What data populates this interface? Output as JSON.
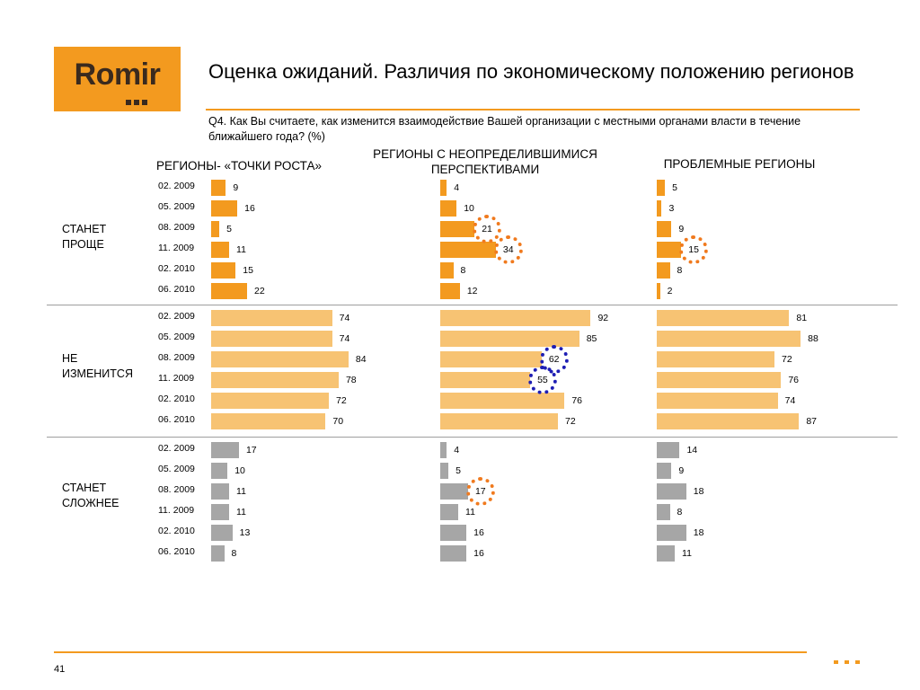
{
  "logo": {
    "text": "Romir"
  },
  "header": {
    "title": "Оценка ожиданий. Различия по экономическому положению регионов",
    "question": "Q4. Как Вы считаете, как изменится взаимодействие Вашей организации с местными органами власти в течение ближайшего года? (%)"
  },
  "chart_data": {
    "type": "bar",
    "orientation": "horizontal",
    "categories": [
      "02. 2009",
      "05. 2009",
      "08. 2009",
      "11. 2009",
      "02. 2010",
      "06. 2010"
    ],
    "columns": [
      "РЕГИОНЫ- «ТОЧКИ РОСТА»",
      "РЕГИОНЫ   С НЕОПРЕДЕЛИВШИМИСЯ ПЕРСПЕКТИВАМИ",
      "ПРОБЛЕМНЫЕ РЕГИОНЫ"
    ],
    "groups": [
      {
        "label": "СТАНЕТ ПРОЩЕ",
        "color": "#F39A1F",
        "series": [
          {
            "name": "РЕГИОНЫ- «ТОЧКИ РОСТА»",
            "values": [
              9,
              16,
              5,
              11,
              15,
              22
            ]
          },
          {
            "name": "РЕГИОНЫ   С НЕОПРЕДЕЛИВШИМИСЯ ПЕРСПЕКТИВАМИ",
            "values": [
              4,
              10,
              21,
              34,
              8,
              12
            ]
          },
          {
            "name": "ПРОБЛЕМНЫЕ РЕГИОНЫ",
            "values": [
              5,
              3,
              9,
              15,
              8,
              2
            ]
          }
        ]
      },
      {
        "label": "НЕ ИЗМЕНИТСЯ",
        "color": "#F7C373",
        "series": [
          {
            "name": "РЕГИОНЫ- «ТОЧКИ РОСТА»",
            "values": [
              74,
              74,
              84,
              78,
              72,
              70
            ]
          },
          {
            "name": "РЕГИОНЫ   С НЕОПРЕДЕЛИВШИМИСЯ ПЕРСПЕКТИВАМИ",
            "values": [
              92,
              85,
              62,
              55,
              76,
              72
            ]
          },
          {
            "name": "ПРОБЛЕМНЫЕ РЕГИОНЫ",
            "values": [
              81,
              88,
              72,
              76,
              74,
              87
            ]
          }
        ]
      },
      {
        "label": "СТАНЕТ СЛОЖНЕЕ",
        "color": "#A6A6A6",
        "series": [
          {
            "name": "РЕГИОНЫ- «ТОЧКИ РОСТА»",
            "values": [
              17,
              10,
              11,
              11,
              13,
              8
            ]
          },
          {
            "name": "РЕГИОНЫ   С НЕОПРЕДЕЛИВШИМИСЯ ПЕРСПЕКТИВАМИ",
            "values": [
              4,
              5,
              17,
              11,
              16,
              16
            ]
          },
          {
            "name": "ПРОБЛЕМНЫЕ РЕГИОНЫ",
            "values": [
              14,
              9,
              18,
              8,
              18,
              11
            ]
          }
        ]
      }
    ],
    "highlights": [
      {
        "group": 0,
        "column": 1,
        "row": 2,
        "color": "#F07A1E"
      },
      {
        "group": 0,
        "column": 1,
        "row": 3,
        "color": "#F07A1E"
      },
      {
        "group": 0,
        "column": 2,
        "row": 3,
        "color": "#F07A1E"
      },
      {
        "group": 1,
        "column": 1,
        "row": 2,
        "color": "#1E1EB4"
      },
      {
        "group": 1,
        "column": 1,
        "row": 3,
        "color": "#1E1EB4"
      },
      {
        "group": 2,
        "column": 1,
        "row": 2,
        "color": "#F07A1E"
      }
    ]
  },
  "footer": {
    "page_number": "41"
  }
}
